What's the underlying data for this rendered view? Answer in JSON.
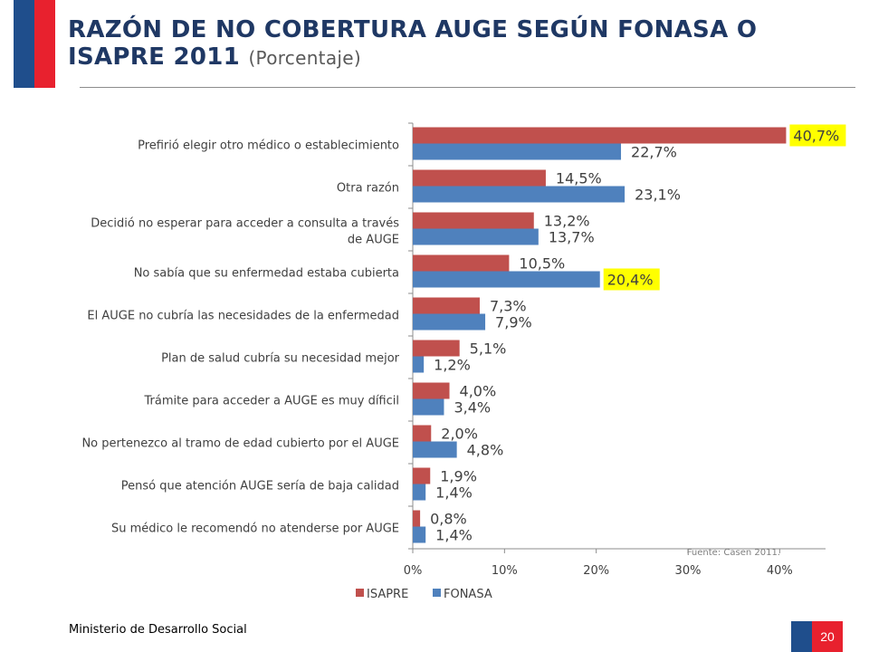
{
  "colors": {
    "isapre": "#c0504d",
    "fonasa": "#4f81bd",
    "brand_blue": "#1f4e8c",
    "brand_red": "#e8212e",
    "title": "#1f3864",
    "highlight": "#ffff00"
  },
  "header": {
    "title": "RAZÓN DE NO COBERTURA AUGE SEGÚN FONASA O ISAPRE 2011",
    "subtitle": "(Porcentaje)"
  },
  "footer": {
    "ministry": "Ministerio de Desarrollo Social",
    "page_number": "20"
  },
  "chart_data": {
    "type": "bar",
    "orientation": "horizontal",
    "categories": [
      "Prefirió elegir otro médico o establecimiento",
      "Otra razón",
      "Decidió no esperar para acceder a consulta a través de AUGE",
      "No sabía que su enfermedad estaba cubierta",
      "El AUGE no cubría las necesidades de la enfermedad",
      "Plan de salud cubría su necesidad mejor",
      "Trámite para acceder a AUGE es muy díficil",
      "No pertenezco al tramo de edad cubierto por el AUGE",
      "Pensó que atención AUGE sería de baja calidad",
      "Su médico le recomendó no atenderse por AUGE"
    ],
    "series": [
      {
        "name": "ISAPRE",
        "values": [
          40.7,
          14.5,
          13.2,
          10.5,
          7.3,
          5.1,
          4.0,
          2.0,
          1.9,
          0.8
        ],
        "labels": [
          "40,7%",
          "14,5%",
          "13,2%",
          "10,5%",
          "7,3%",
          "5,1%",
          "4,0%",
          "2,0%",
          "1,9%",
          "0,8%"
        ]
      },
      {
        "name": "FONASA",
        "values": [
          22.7,
          23.1,
          13.7,
          20.4,
          7.9,
          1.2,
          3.4,
          4.8,
          1.4,
          1.4
        ],
        "labels": [
          "22,7%",
          "23,1%",
          "13,7%",
          "20,4%",
          "7,9%",
          "1,2%",
          "3,4%",
          "4,8%",
          "1,4%",
          "1,4%"
        ]
      }
    ],
    "highlighted": [
      {
        "series": 0,
        "index": 0
      },
      {
        "series": 1,
        "index": 3
      }
    ],
    "xlim": [
      0,
      45
    ],
    "xticks": [
      "0%",
      "10%",
      "20%",
      "30%",
      "40%"
    ],
    "legend": "bottom",
    "grid": false,
    "source_note": "Fuente: Casen 2011."
  }
}
